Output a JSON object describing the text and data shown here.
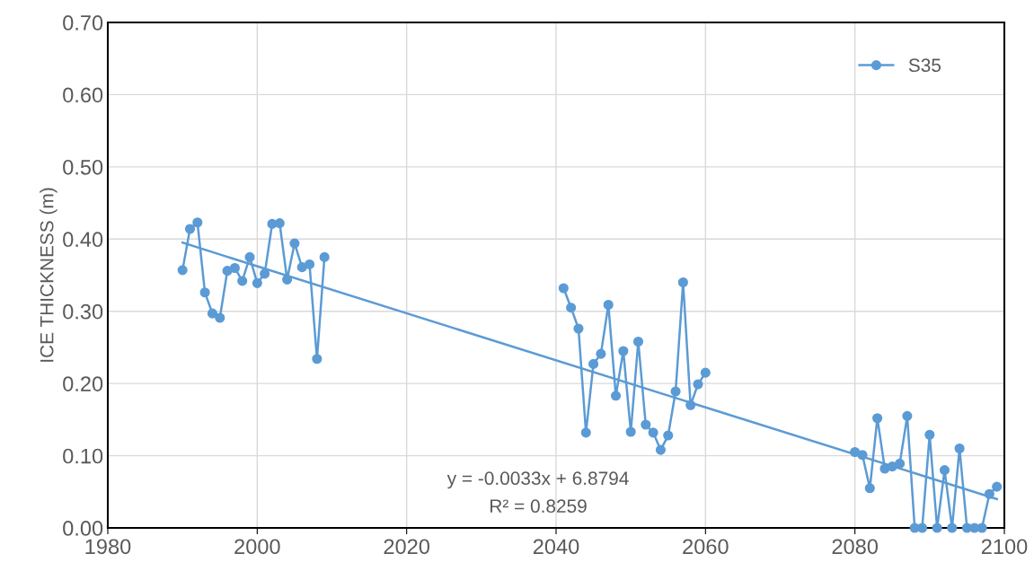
{
  "chart_data": {
    "type": "line",
    "ylabel": "ICE THICKNESS (m)",
    "xlim": [
      1980,
      2100
    ],
    "xticks": [
      1980,
      2000,
      2020,
      2040,
      2060,
      2080,
      2100
    ],
    "ylim": [
      0,
      0.7
    ],
    "yticks": [
      {
        "value": 0,
        "label": "0.00"
      },
      {
        "value": 0.1,
        "label": "0.10"
      },
      {
        "value": 0.2,
        "label": "0.20"
      },
      {
        "value": 0.3,
        "label": "0.30"
      },
      {
        "value": 0.4,
        "label": "0.40"
      },
      {
        "value": 0.5,
        "label": "0.50"
      },
      {
        "value": 0.6,
        "label": "0.60"
      },
      {
        "value": 0.7,
        "label": "0.70"
      }
    ],
    "grid": true,
    "legend": "top right",
    "marker": "circle",
    "line_style": "solid",
    "series": [
      {
        "name": "S35",
        "color": "#5b9bd5",
        "x": [
          1990,
          1991,
          1992,
          1993,
          1994,
          1995,
          1996,
          1997,
          1998,
          1999,
          2000,
          2001,
          2002,
          2003,
          2004,
          2005,
          2006,
          2007,
          2008,
          2009,
          2025,
          2041,
          2042,
          2043,
          2044,
          2045,
          2046,
          2047,
          2048,
          2049,
          2050,
          2051,
          2052,
          2053,
          2054,
          2055,
          2056,
          2057,
          2058,
          2059,
          2060,
          2070,
          2080,
          2081,
          2082,
          2083,
          2084,
          2085,
          2086,
          2087,
          2088,
          2089,
          2090,
          2091,
          2092,
          2093,
          2094,
          2095,
          2096,
          2097,
          2098,
          2099
        ],
        "values": [
          0.357,
          0.414,
          0.423,
          0.326,
          0.297,
          0.291,
          0.356,
          0.36,
          0.342,
          0.375,
          0.339,
          0.352,
          0.421,
          0.422,
          0.344,
          0.394,
          0.361,
          0.365,
          0.234,
          0.375,
          null,
          0.332,
          0.305,
          0.276,
          0.132,
          0.227,
          0.241,
          0.309,
          0.183,
          0.245,
          0.133,
          0.258,
          0.143,
          0.132,
          0.108,
          0.128,
          0.189,
          0.34,
          0.17,
          0.199,
          0.215,
          null,
          0.105,
          0.101,
          0.055,
          0.152,
          0.082,
          0.085,
          0.089,
          0.155,
          0,
          0,
          0.129,
          0,
          0.08,
          0,
          0.11,
          0,
          0,
          0,
          0.047,
          0.057
        ]
      },
      {
        "type": "line",
        "marker": "none",
        "color": "#5b9bd5",
        "x": [
          1990,
          2099
        ],
        "values": [
          0.395,
          0.04
        ]
      }
    ],
    "annotations": [
      "y = -0.0033x + 6.8794",
      "R² = 0.8259"
    ]
  }
}
